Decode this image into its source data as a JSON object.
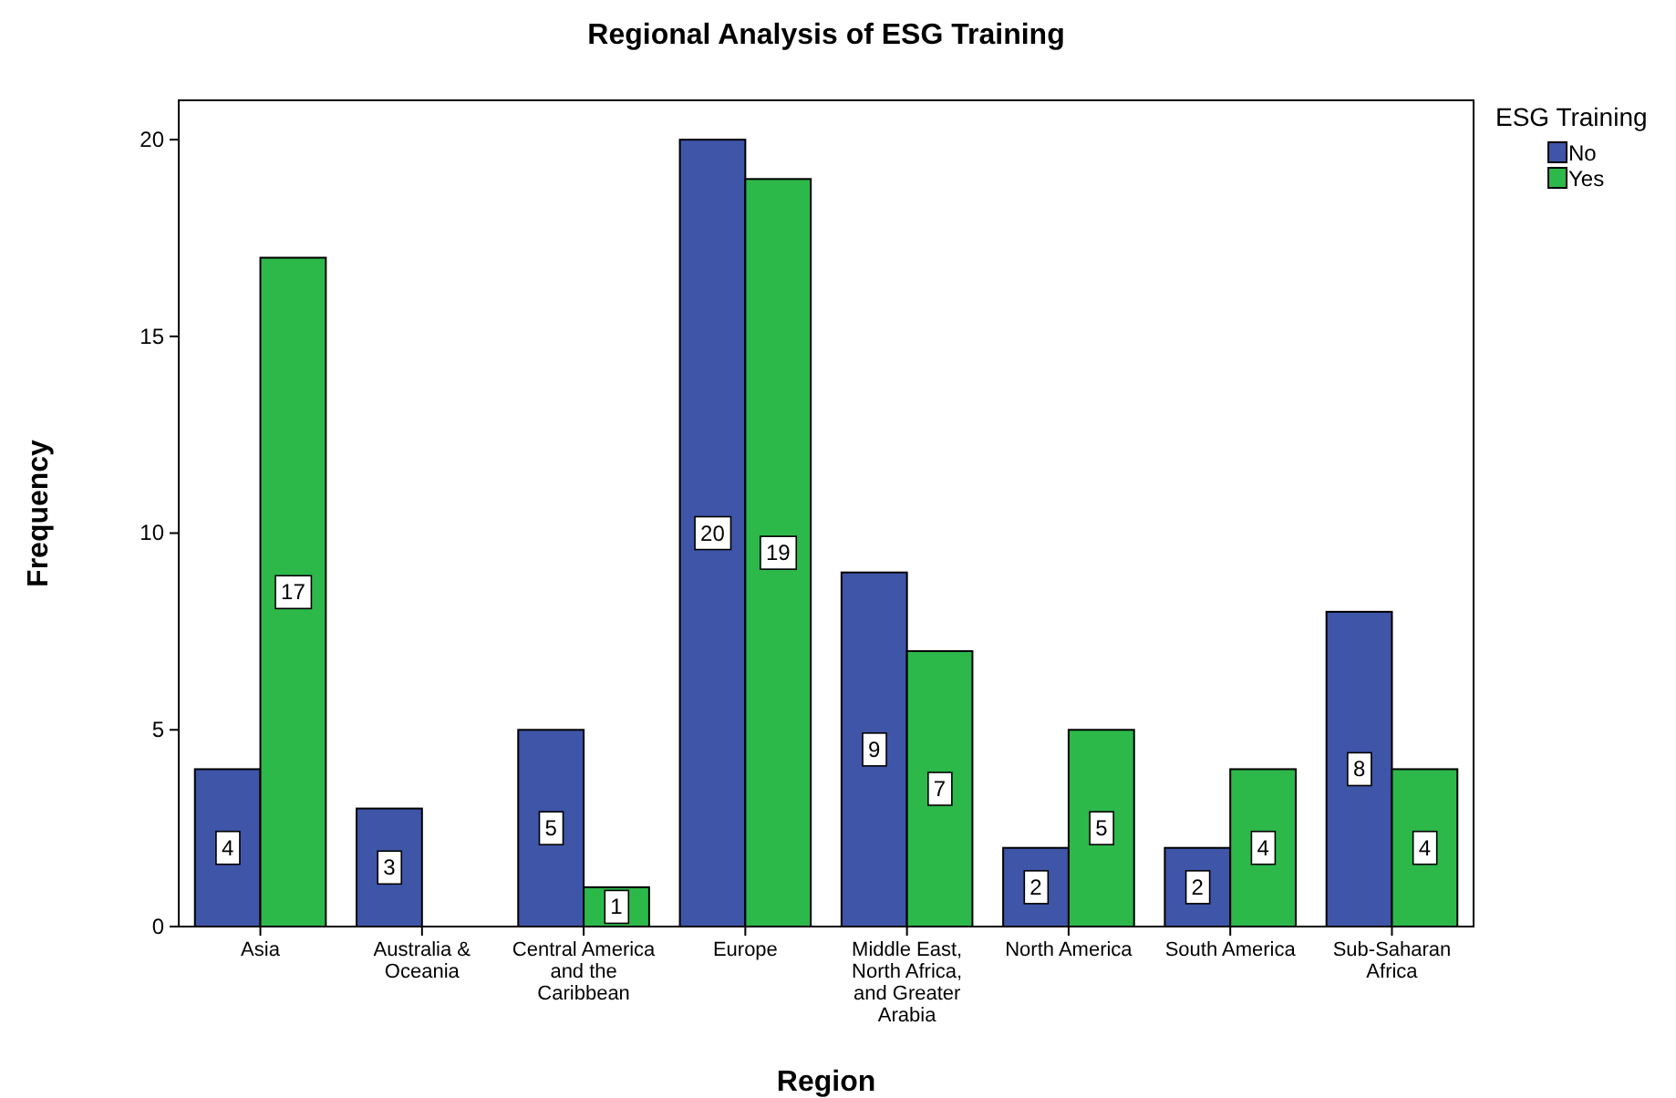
{
  "chart_data": {
    "type": "bar",
    "title": "Regional Analysis of ESG Training",
    "xlabel": "Region",
    "ylabel": "Frequency",
    "legend_title": "ESG Training",
    "categories": [
      "Asia",
      "Australia & Oceania",
      "Central America and the Caribbean",
      "Europe",
      "Middle East, North Africa, and Greater Arabia",
      "North America",
      "South America",
      "Sub-Saharan Africa"
    ],
    "series": [
      {
        "name": "No",
        "color": "#3e55a8",
        "values": [
          4,
          3,
          5,
          20,
          9,
          2,
          2,
          8
        ],
        "value_labels": [
          "4",
          "3",
          "5",
          "20",
          "9",
          "2",
          "2",
          "8"
        ]
      },
      {
        "name": "Yes",
        "color": "#2db84a",
        "values": [
          17,
          0,
          1,
          19,
          7,
          5,
          4,
          4
        ],
        "value_labels": [
          "17",
          null,
          "1",
          "19",
          "7",
          "5",
          "4",
          "4"
        ]
      }
    ],
    "ylim": [
      0,
      21
    ],
    "yticks": [
      0,
      5,
      10,
      15,
      20
    ],
    "grid": false,
    "legend": "top right"
  }
}
